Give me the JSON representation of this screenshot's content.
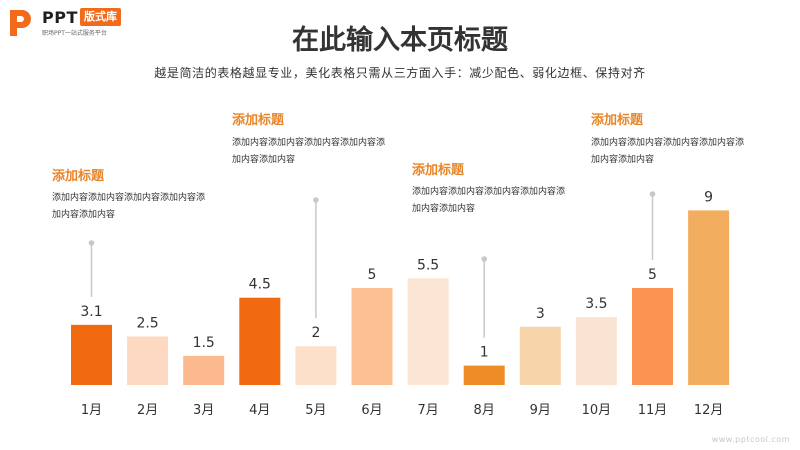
{
  "logo": {
    "mark": "P",
    "name": "PPT",
    "badge": "版式库",
    "tagline": "职场PPT一站式服务平台"
  },
  "header": {
    "title": "在此输入本页标题",
    "subtitle": "越是简洁的表格越显专业，美化表格只需从三方面入手：减少配色、弱化边框、保持对齐"
  },
  "annotations": [
    {
      "title": "添加标题",
      "body": "添加内容添加内容添加内容添加内容添加内容添加内容",
      "month_index": 0
    },
    {
      "title": "添加标题",
      "body": "添加内容添加内容添加内容添加内容添加内容添加内容",
      "month_index": 4
    },
    {
      "title": "添加标题",
      "body": "添加内容添加内容添加内容添加内容添加内容添加内容",
      "month_index": 7
    },
    {
      "title": "添加标题",
      "body": "添加内容添加内容添加内容添加内容添加内容添加内容",
      "month_index": 10
    }
  ],
  "chart_data": {
    "type": "bar",
    "categories": [
      "1月",
      "2月",
      "3月",
      "4月",
      "5月",
      "6月",
      "7月",
      "8月",
      "9月",
      "10月",
      "11月",
      "12月"
    ],
    "values": [
      3.1,
      2.5,
      1.5,
      4.5,
      2,
      5,
      5.5,
      1,
      3,
      3.5,
      5,
      9
    ],
    "value_labels": [
      "3.1",
      "2.5",
      "1.5",
      "4.5",
      "2",
      "5",
      "5.5",
      "1",
      "3",
      "3.5",
      "5",
      "9"
    ],
    "colors": [
      "#f26a10",
      "#fcd9c0",
      "#fcb98e",
      "#f26a10",
      "#fde0c9",
      "#fcbf92",
      "#fbe6d6",
      "#ee8c27",
      "#f8d4aa",
      "#fbe3d4",
      "#fb9452",
      "#f3ad5f"
    ],
    "ylim": [
      0,
      9
    ],
    "grid": false,
    "legend": "none",
    "xlabel": "",
    "ylabel": "",
    "annotation_line_color": "#c8c8c8"
  },
  "footer": {
    "watermark": "www.pptcool.com"
  }
}
